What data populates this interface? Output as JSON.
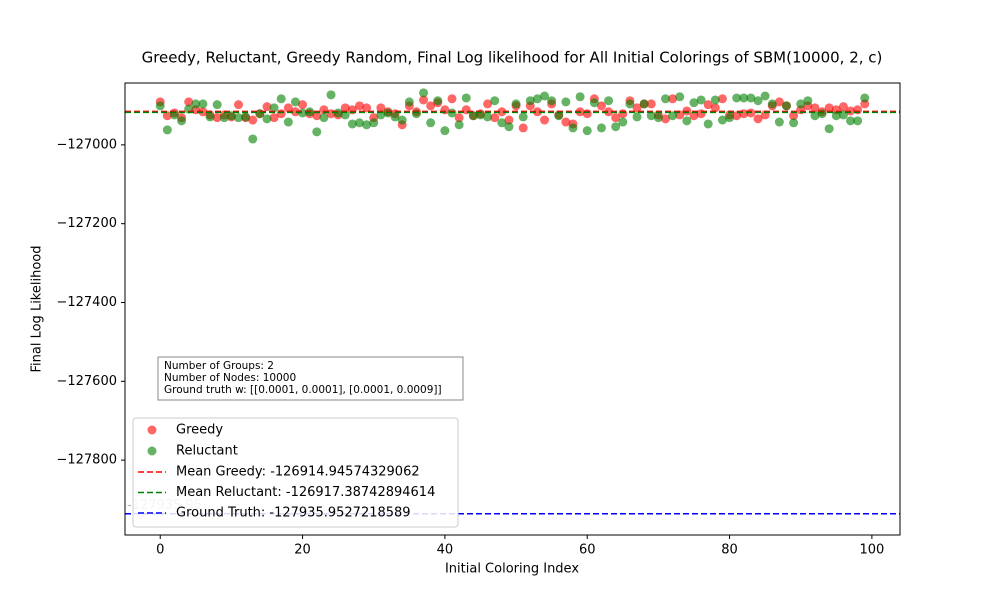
{
  "chart_data": {
    "type": "scatter",
    "title": "Greedy, Reluctant, Greedy Random, Final Log likelihood for All Initial Colorings of SBM(10000, 2, c)",
    "xlabel": "Initial Coloring Index",
    "ylabel": "Final Log Likelihood",
    "x": [
      0,
      1,
      2,
      3,
      4,
      5,
      6,
      7,
      8,
      9,
      10,
      11,
      12,
      13,
      14,
      15,
      16,
      17,
      18,
      19,
      20,
      21,
      22,
      23,
      24,
      25,
      26,
      27,
      28,
      29,
      30,
      31,
      32,
      33,
      34,
      35,
      36,
      37,
      38,
      39,
      40,
      41,
      42,
      43,
      44,
      45,
      46,
      47,
      48,
      49,
      50,
      51,
      52,
      53,
      54,
      55,
      56,
      57,
      58,
      59,
      60,
      61,
      62,
      63,
      64,
      65,
      66,
      67,
      68,
      69,
      70,
      71,
      72,
      73,
      74,
      75,
      76,
      77,
      78,
      79,
      80,
      81,
      82,
      83,
      84,
      85,
      86,
      87,
      88,
      89,
      90,
      91,
      92,
      93,
      94,
      95,
      96,
      97,
      98,
      99
    ],
    "series": [
      {
        "name": "Greedy",
        "color": "#ff0000",
        "values": [
          -126891,
          -126926,
          -126919,
          -126931,
          -126891,
          -126911,
          -126916,
          -126924,
          -126931,
          -126924,
          -126929,
          -126898,
          -126931,
          -126937,
          -126921,
          -126903,
          -126931,
          -126921,
          -126906,
          -126916,
          -126898,
          -126921,
          -126926,
          -126911,
          -126921,
          -126924,
          -126906,
          -126911,
          -126901,
          -126906,
          -126931,
          -126906,
          -126916,
          -126921,
          -126949,
          -126901,
          -126916,
          -126886,
          -126901,
          -126893,
          -126911,
          -126883,
          -126931,
          -126911,
          -126926,
          -126921,
          -126896,
          -126931,
          -126916,
          -126937,
          -126901,
          -126957,
          -126901,
          -126916,
          -126937,
          -126896,
          -126924,
          -126942,
          -126947,
          -126916,
          -126921,
          -126883,
          -126901,
          -126916,
          -126931,
          -126921,
          -126888,
          -126906,
          -126896,
          -126896,
          -126924,
          -126934,
          -126883,
          -126924,
          -126914,
          -126926,
          -126921,
          -126898,
          -126906,
          -126883,
          -126924,
          -126926,
          -126921,
          -126919,
          -126934,
          -126924,
          -126901,
          -126891,
          -126901,
          -126926,
          -126911,
          -126901,
          -126906,
          -126916,
          -126906,
          -126911,
          -126903,
          -126914,
          -126911,
          -126896
        ]
      },
      {
        "name": "Reluctant",
        "color": "#008000",
        "values": [
          -126901,
          -126962,
          -126924,
          -126939,
          -126909,
          -126896,
          -126896,
          -126929,
          -126898,
          -126931,
          -126926,
          -126931,
          -126929,
          -126985,
          -126921,
          -126934,
          -126906,
          -126883,
          -126942,
          -126891,
          -126919,
          -126916,
          -126967,
          -126931,
          -126873,
          -126919,
          -126924,
          -126947,
          -126944,
          -126949,
          -126944,
          -126924,
          -126919,
          -126929,
          -126937,
          -126891,
          -126921,
          -126868,
          -126944,
          -126888,
          -126964,
          -126919,
          -126949,
          -126881,
          -126926,
          -126924,
          -126929,
          -126888,
          -126944,
          -126954,
          -126896,
          -126929,
          -126888,
          -126883,
          -126876,
          -126888,
          -126926,
          -126891,
          -126957,
          -126878,
          -126964,
          -126893,
          -126957,
          -126888,
          -126954,
          -126942,
          -126896,
          -126929,
          -126896,
          -126926,
          -126931,
          -126883,
          -126926,
          -126878,
          -126939,
          -126893,
          -126886,
          -126947,
          -126886,
          -126937,
          -126931,
          -126881,
          -126881,
          -126881,
          -126888,
          -126876,
          -126896,
          -126942,
          -126901,
          -126944,
          -126896,
          -126888,
          -126926,
          -126921,
          -126959,
          -126926,
          -126924,
          -126939,
          -126939,
          -126881
        ]
      }
    ],
    "hlines": [
      {
        "name": "Mean Greedy: -126914.94574329062",
        "value": -126914.94574329062,
        "color": "#ff0000"
      },
      {
        "name": "Mean Reluctant: -126917.38742894614",
        "value": -126917.38742894614,
        "color": "#008000"
      },
      {
        "name": "Ground Truth: -127935.9527218589",
        "value": -127935.9527218589,
        "color": "#0000ff",
        "label": "-127935.95"
      }
    ],
    "textbox": [
      "Number of Groups: 2",
      "Number of Nodes: 10000",
      "Ground truth w: [[0.0001, 0.0001], [0.0001, 0.0009]]"
    ],
    "xlim": [
      -4.95,
      103.95
    ],
    "ylim": [
      -127990,
      -126843
    ],
    "xticks": [
      0,
      20,
      40,
      60,
      80,
      100
    ],
    "yticks": [
      {
        "value": -127800,
        "label": "−127800"
      },
      {
        "value": -127600,
        "label": "−127600"
      },
      {
        "value": -127400,
        "label": "−127400"
      },
      {
        "value": -127200,
        "label": "−127200"
      },
      {
        "value": -127000,
        "label": "−127000"
      }
    ],
    "legend": "lower left"
  }
}
